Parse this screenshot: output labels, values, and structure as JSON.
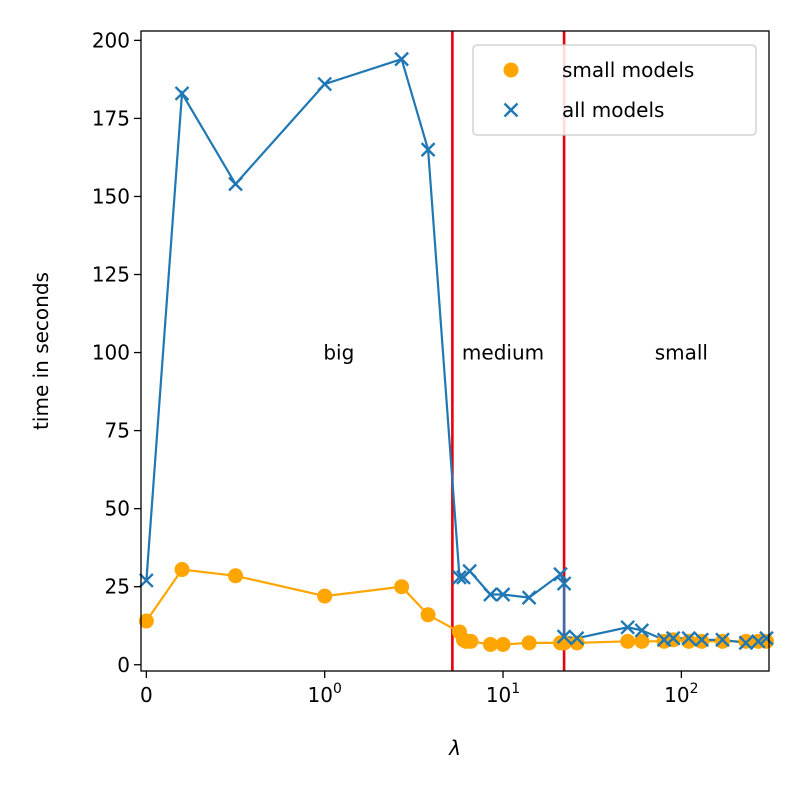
{
  "chart_data": {
    "type": "line",
    "xlabel": "λ",
    "ylabel": "time in seconds",
    "xscale": "symlog",
    "ylim": [
      -2,
      203
    ],
    "grid": false,
    "legend_position": "top-right",
    "x_ticks": [
      {
        "value": 0,
        "base": "0",
        "exp": ""
      },
      {
        "value": 1,
        "base": "10",
        "exp": "0"
      },
      {
        "value": 10,
        "base": "10",
        "exp": "1"
      },
      {
        "value": 100,
        "base": "10",
        "exp": "2"
      }
    ],
    "y_ticks": [
      0,
      25,
      50,
      75,
      100,
      125,
      150,
      175,
      200
    ],
    "thresholds": [
      {
        "x": 5.2,
        "color": "#e8000b"
      },
      {
        "x": 22,
        "color": "#e8000b"
      }
    ],
    "regions": [
      {
        "label": "big",
        "x": 1.2,
        "y": 100
      },
      {
        "label": "medium",
        "x": 10.0,
        "y": 100
      },
      {
        "label": "small",
        "x": 100,
        "y": 100
      }
    ],
    "series": [
      {
        "name": "small models",
        "color": "#ffa500",
        "marker": "circle",
        "x": [
          0,
          0.2,
          0.5,
          1.0,
          2.7,
          3.8,
          5.7,
          6.0,
          6.2,
          6.6,
          8.5,
          10,
          14,
          21,
          22,
          26,
          50,
          60,
          80,
          90,
          110,
          130,
          170,
          230,
          270,
          300
        ],
        "y": [
          14,
          30.5,
          28.5,
          22,
          25,
          16,
          10.5,
          8,
          7.5,
          7.5,
          6.5,
          6.5,
          7,
          7,
          7,
          7,
          7.5,
          7.5,
          7.5,
          8,
          7.5,
          7.5,
          7.5,
          7.5,
          7.5,
          7.5
        ]
      },
      {
        "name": "all models",
        "color": "#1f77b4",
        "marker": "x",
        "x": [
          0,
          0.2,
          0.5,
          1.0,
          2.7,
          3.8,
          5.7,
          6.0,
          6.5,
          8.5,
          10,
          14,
          21,
          22,
          22,
          26,
          50,
          60,
          80,
          90,
          110,
          130,
          170,
          230,
          270,
          300
        ],
        "y": [
          27,
          183,
          154,
          186,
          194,
          165,
          28,
          28,
          30,
          22.5,
          22.5,
          21.5,
          29,
          26,
          9,
          8.5,
          12,
          11,
          8,
          8.5,
          8.5,
          8,
          8,
          7,
          7.5,
          8.5
        ]
      }
    ]
  }
}
